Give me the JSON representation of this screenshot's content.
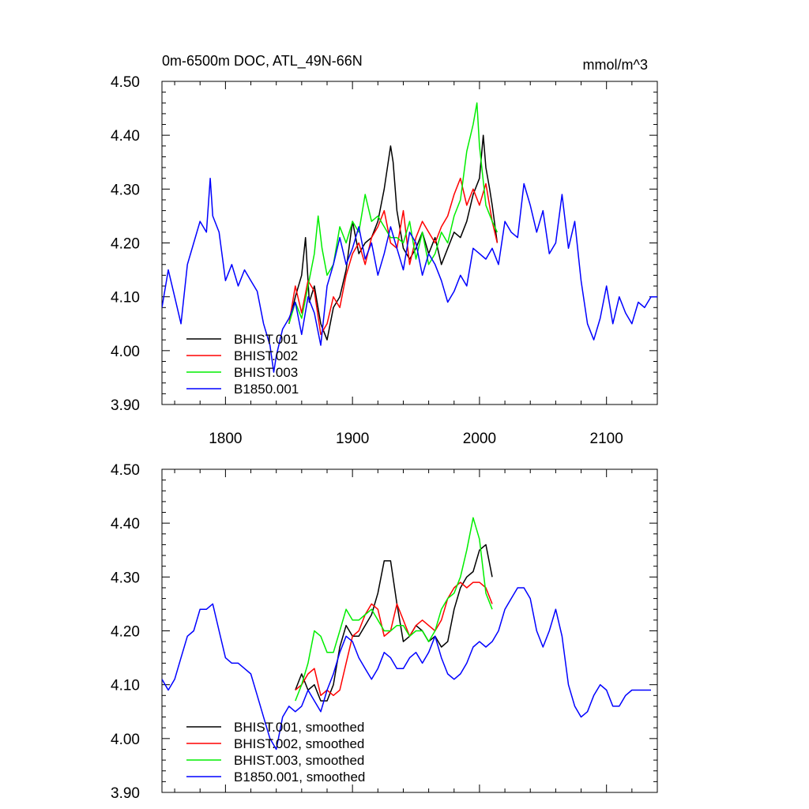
{
  "chart_data": [
    {
      "type": "line",
      "title": "0m-6500m DOC, ATL_49N-66N",
      "units": "mmol/m^3",
      "xlim": [
        1750,
        2140
      ],
      "ylim": [
        3.9,
        4.5
      ],
      "xticks": [
        1800,
        1900,
        2000,
        2100
      ],
      "xtick_labels": [
        "1800",
        "1900",
        "2000",
        "2100"
      ],
      "yticks": [
        3.9,
        4.0,
        4.1,
        4.2,
        4.3,
        4.4,
        4.5
      ],
      "ytick_labels": [
        "3.90",
        "4.00",
        "4.10",
        "4.20",
        "4.30",
        "4.40",
        "4.50"
      ],
      "legend_position": "bottom-left",
      "series": [
        {
          "name": "BHIST.001",
          "color": "#000000",
          "x": [
            1850,
            1855,
            1860,
            1863,
            1866,
            1870,
            1875,
            1880,
            1885,
            1890,
            1895,
            1900,
            1905,
            1910,
            1915,
            1920,
            1925,
            1930,
            1932,
            1935,
            1940,
            1945,
            1950,
            1955,
            1960,
            1965,
            1970,
            1975,
            1980,
            1985,
            1990,
            1995,
            2000,
            2003,
            2005,
            2008,
            2010,
            2014
          ],
          "y": [
            4.05,
            4.1,
            4.14,
            4.21,
            4.09,
            4.12,
            4.05,
            4.02,
            4.08,
            4.1,
            4.15,
            4.24,
            4.18,
            4.2,
            4.21,
            4.24,
            4.3,
            4.38,
            4.35,
            4.26,
            4.19,
            4.17,
            4.19,
            4.22,
            4.18,
            4.21,
            4.16,
            4.19,
            4.22,
            4.21,
            4.24,
            4.29,
            4.32,
            4.4,
            4.34,
            4.3,
            4.27,
            4.2
          ]
        },
        {
          "name": "BHIST.002",
          "color": "#ff0000",
          "x": [
            1850,
            1855,
            1860,
            1865,
            1870,
            1875,
            1880,
            1885,
            1890,
            1895,
            1900,
            1905,
            1910,
            1915,
            1920,
            1925,
            1930,
            1935,
            1940,
            1945,
            1950,
            1955,
            1960,
            1965,
            1970,
            1975,
            1980,
            1985,
            1990,
            1995,
            2000,
            2005,
            2010,
            2014
          ],
          "y": [
            4.05,
            4.12,
            4.07,
            4.13,
            4.11,
            4.03,
            4.05,
            4.1,
            4.08,
            4.14,
            4.18,
            4.2,
            4.16,
            4.21,
            4.23,
            4.26,
            4.2,
            4.19,
            4.26,
            4.16,
            4.21,
            4.24,
            4.22,
            4.2,
            4.23,
            4.25,
            4.29,
            4.32,
            4.27,
            4.3,
            4.27,
            4.31,
            4.24,
            4.2
          ]
        },
        {
          "name": "BHIST.003",
          "color": "#00ee00",
          "x": [
            1850,
            1855,
            1860,
            1865,
            1870,
            1873,
            1876,
            1880,
            1885,
            1890,
            1895,
            1900,
            1905,
            1910,
            1915,
            1920,
            1925,
            1930,
            1935,
            1940,
            1945,
            1950,
            1955,
            1960,
            1965,
            1970,
            1975,
            1980,
            1985,
            1990,
            1995,
            1998,
            2000,
            2005,
            2010,
            2014
          ],
          "y": [
            4.05,
            4.09,
            4.06,
            4.12,
            4.18,
            4.25,
            4.19,
            4.14,
            4.16,
            4.23,
            4.2,
            4.24,
            4.22,
            4.29,
            4.24,
            4.25,
            4.23,
            4.21,
            4.21,
            4.2,
            4.24,
            4.17,
            4.22,
            4.16,
            4.18,
            4.22,
            4.2,
            4.25,
            4.28,
            4.37,
            4.42,
            4.46,
            4.38,
            4.27,
            4.24,
            4.22
          ]
        },
        {
          "name": "B1850.001",
          "color": "#0000ff",
          "x": [
            1750,
            1755,
            1760,
            1765,
            1770,
            1775,
            1780,
            1785,
            1788,
            1790,
            1795,
            1800,
            1805,
            1810,
            1815,
            1820,
            1825,
            1830,
            1835,
            1838,
            1840,
            1845,
            1850,
            1855,
            1860,
            1865,
            1870,
            1875,
            1880,
            1885,
            1890,
            1895,
            1900,
            1905,
            1910,
            1915,
            1920,
            1925,
            1930,
            1935,
            1940,
            1945,
            1950,
            1955,
            1960,
            1965,
            1970,
            1975,
            1980,
            1985,
            1990,
            1995,
            2000,
            2005,
            2010,
            2015,
            2020,
            2025,
            2030,
            2035,
            2040,
            2045,
            2050,
            2055,
            2060,
            2065,
            2070,
            2075,
            2080,
            2085,
            2090,
            2095,
            2100,
            2105,
            2110,
            2115,
            2120,
            2125,
            2130,
            2135,
            2140
          ],
          "y": [
            4.08,
            4.15,
            4.1,
            4.05,
            4.16,
            4.2,
            4.24,
            4.22,
            4.32,
            4.25,
            4.22,
            4.13,
            4.16,
            4.12,
            4.15,
            4.13,
            4.11,
            4.05,
            4.01,
            3.96,
            3.99,
            4.04,
            4.06,
            4.09,
            4.03,
            4.1,
            4.07,
            4.01,
            4.12,
            4.16,
            4.21,
            4.16,
            4.19,
            4.23,
            4.17,
            4.2,
            4.14,
            4.18,
            4.23,
            4.19,
            4.15,
            4.22,
            4.2,
            4.14,
            4.18,
            4.16,
            4.13,
            4.09,
            4.11,
            4.14,
            4.12,
            4.19,
            4.18,
            4.17,
            4.19,
            4.16,
            4.24,
            4.22,
            4.21,
            4.31,
            4.27,
            4.22,
            4.26,
            4.18,
            4.2,
            4.29,
            4.19,
            4.24,
            4.13,
            4.05,
            4.02,
            4.06,
            4.12,
            4.05,
            4.1,
            4.07,
            4.05,
            4.09,
            4.08,
            4.1,
            4.1
          ]
        }
      ]
    },
    {
      "type": "line",
      "title": "",
      "xlim": [
        1750,
        2140
      ],
      "ylim": [
        3.9,
        4.5
      ],
      "xticks": [
        1800,
        1900,
        2000,
        2100
      ],
      "yticks": [
        3.9,
        4.0,
        4.1,
        4.2,
        4.3,
        4.4,
        4.5
      ],
      "ytick_labels": [
        "3.90",
        "4.00",
        "4.10",
        "4.20",
        "4.30",
        "4.40",
        "4.50"
      ],
      "legend_position": "bottom-left",
      "series": [
        {
          "name": "BHIST.001, smoothed",
          "color": "#000000",
          "x": [
            1855,
            1860,
            1865,
            1870,
            1875,
            1880,
            1885,
            1890,
            1895,
            1900,
            1905,
            1910,
            1915,
            1920,
            1925,
            1930,
            1935,
            1940,
            1945,
            1950,
            1955,
            1960,
            1965,
            1970,
            1975,
            1980,
            1985,
            1990,
            1995,
            2000,
            2005,
            2010
          ],
          "y": [
            4.09,
            4.12,
            4.09,
            4.1,
            4.07,
            4.07,
            4.1,
            4.17,
            4.21,
            4.19,
            4.19,
            4.21,
            4.23,
            4.27,
            4.33,
            4.33,
            4.25,
            4.18,
            4.19,
            4.21,
            4.2,
            4.18,
            4.19,
            4.17,
            4.18,
            4.24,
            4.28,
            4.3,
            4.31,
            4.35,
            4.36,
            4.3
          ]
        },
        {
          "name": "BHIST.002, smoothed",
          "color": "#ff0000",
          "x": [
            1855,
            1860,
            1865,
            1870,
            1875,
            1880,
            1885,
            1890,
            1895,
            1900,
            1905,
            1910,
            1915,
            1920,
            1925,
            1930,
            1935,
            1940,
            1945,
            1950,
            1955,
            1960,
            1965,
            1970,
            1975,
            1980,
            1985,
            1990,
            1995,
            2000,
            2005,
            2010
          ],
          "y": [
            4.09,
            4.1,
            4.12,
            4.13,
            4.08,
            4.09,
            4.08,
            4.09,
            4.14,
            4.19,
            4.2,
            4.23,
            4.25,
            4.24,
            4.19,
            4.2,
            4.25,
            4.22,
            4.19,
            4.21,
            4.22,
            4.21,
            4.2,
            4.22,
            4.26,
            4.28,
            4.29,
            4.28,
            4.29,
            4.29,
            4.28,
            4.25
          ]
        },
        {
          "name": "BHIST.003, smoothed",
          "color": "#00ee00",
          "x": [
            1855,
            1860,
            1865,
            1870,
            1875,
            1880,
            1885,
            1890,
            1895,
            1900,
            1905,
            1910,
            1915,
            1920,
            1925,
            1930,
            1935,
            1940,
            1945,
            1950,
            1955,
            1960,
            1965,
            1970,
            1975,
            1980,
            1985,
            1990,
            1995,
            2000,
            2005,
            2010
          ],
          "y": [
            4.07,
            4.1,
            4.14,
            4.2,
            4.19,
            4.16,
            4.16,
            4.2,
            4.24,
            4.22,
            4.22,
            4.23,
            4.24,
            4.22,
            4.2,
            4.2,
            4.21,
            4.21,
            4.19,
            4.2,
            4.2,
            4.18,
            4.2,
            4.24,
            4.26,
            4.27,
            4.3,
            4.35,
            4.41,
            4.37,
            4.27,
            4.24
          ]
        },
        {
          "name": "B1850.001, smoothed",
          "color": "#0000ff",
          "x": [
            1750,
            1755,
            1760,
            1765,
            1770,
            1775,
            1780,
            1785,
            1790,
            1795,
            1800,
            1805,
            1810,
            1815,
            1820,
            1825,
            1830,
            1835,
            1840,
            1845,
            1850,
            1855,
            1860,
            1865,
            1870,
            1875,
            1880,
            1885,
            1890,
            1895,
            1900,
            1905,
            1910,
            1915,
            1920,
            1925,
            1930,
            1935,
            1940,
            1945,
            1950,
            1955,
            1960,
            1965,
            1970,
            1975,
            1980,
            1985,
            1990,
            1995,
            2000,
            2005,
            2010,
            2015,
            2020,
            2025,
            2030,
            2035,
            2040,
            2045,
            2050,
            2055,
            2060,
            2065,
            2070,
            2075,
            2080,
            2085,
            2090,
            2095,
            2100,
            2105,
            2110,
            2115,
            2120,
            2125,
            2130,
            2135
          ],
          "y": [
            4.11,
            4.09,
            4.11,
            4.15,
            4.19,
            4.2,
            4.24,
            4.24,
            4.25,
            4.2,
            4.15,
            4.14,
            4.14,
            4.13,
            4.12,
            4.08,
            4.04,
            4.0,
            3.98,
            4.04,
            4.06,
            4.05,
            4.06,
            4.09,
            4.07,
            4.05,
            4.09,
            4.12,
            4.16,
            4.19,
            4.18,
            4.15,
            4.13,
            4.11,
            4.13,
            4.16,
            4.15,
            4.13,
            4.13,
            4.15,
            4.16,
            4.14,
            4.16,
            4.19,
            4.15,
            4.12,
            4.11,
            4.12,
            4.14,
            4.17,
            4.18,
            4.17,
            4.18,
            4.2,
            4.24,
            4.26,
            4.28,
            4.28,
            4.26,
            4.2,
            4.17,
            4.2,
            4.24,
            4.19,
            4.1,
            4.06,
            4.04,
            4.05,
            4.08,
            4.1,
            4.09,
            4.06,
            4.06,
            4.08,
            4.09,
            4.09,
            4.09,
            4.09
          ]
        }
      ]
    }
  ]
}
